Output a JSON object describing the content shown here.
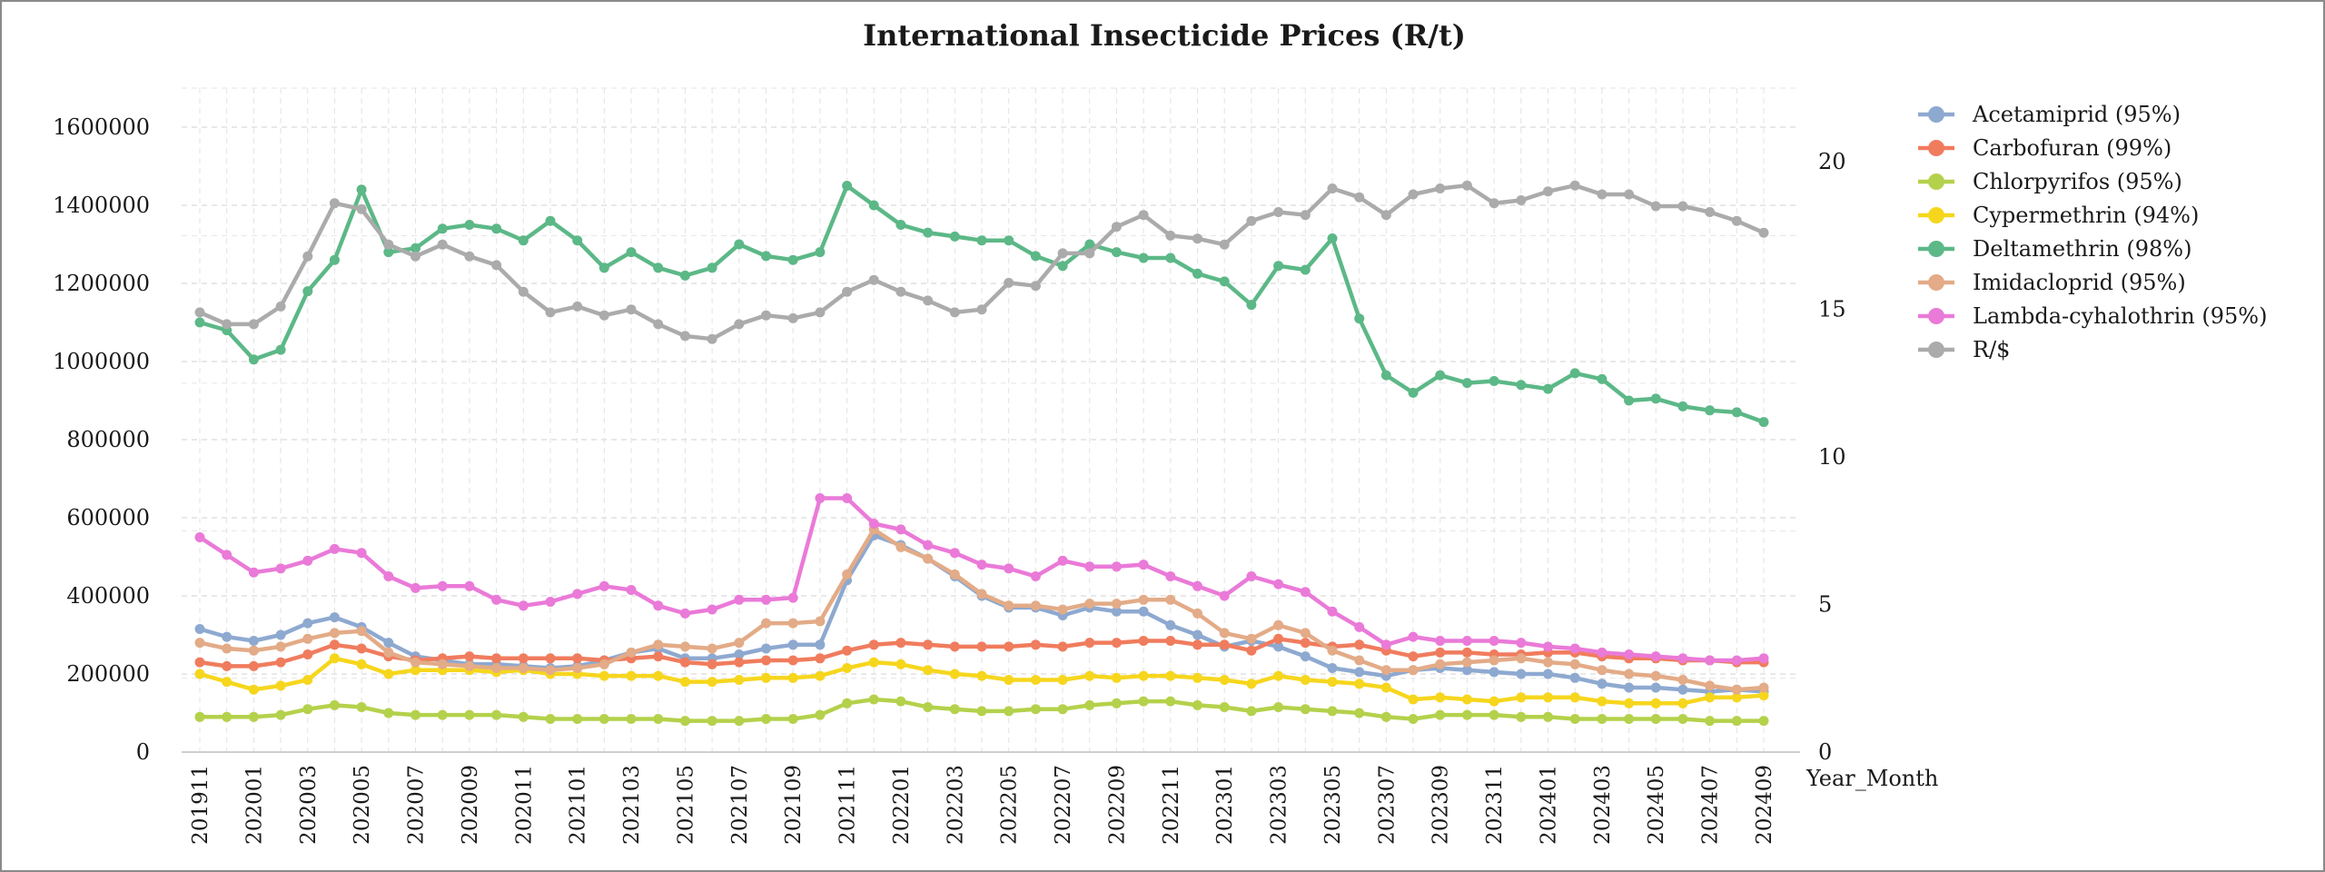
{
  "chart_data": {
    "type": "line",
    "title": "International Insecticide Prices (R/t)",
    "xlabel": "Year_Month",
    "ylabel": "",
    "ylim": [
      0,
      1700000
    ],
    "y2lim": [
      0,
      22.5
    ],
    "yticks": [
      "0",
      "200000",
      "400000",
      "600000",
      "800000",
      "1000000",
      "1200000",
      "1400000",
      "1600000"
    ],
    "y2ticks": [
      "0",
      "5",
      "10",
      "15",
      "20"
    ],
    "legend_position": "right",
    "grid": true,
    "x": [
      "201911",
      "201912",
      "202001",
      "202002",
      "202003",
      "202004",
      "202005",
      "202006",
      "202007",
      "202008",
      "202009",
      "202010",
      "202011",
      "202012",
      "202101",
      "202102",
      "202103",
      "202104",
      "202105",
      "202106",
      "202107",
      "202108",
      "202109",
      "202110",
      "202111",
      "202112",
      "202201",
      "202202",
      "202203",
      "202204",
      "202205",
      "202206",
      "202207",
      "202208",
      "202209",
      "202210",
      "202211",
      "202212",
      "202301",
      "202302",
      "202303",
      "202304",
      "202305",
      "202306",
      "202307",
      "202308",
      "202309",
      "202310",
      "202311",
      "202312",
      "202401",
      "202402",
      "202403",
      "202404",
      "202405",
      "202406",
      "202407",
      "202408",
      "202409"
    ],
    "series": [
      {
        "name": "Acetamiprid (95%)",
        "color": "#8ea9d0",
        "axis": "left",
        "values": [
          315000,
          295000,
          285000,
          300000,
          330000,
          345000,
          320000,
          280000,
          245000,
          235000,
          225000,
          225000,
          220000,
          215000,
          220000,
          235000,
          255000,
          265000,
          240000,
          240000,
          250000,
          265000,
          275000,
          275000,
          440000,
          555000,
          530000,
          495000,
          450000,
          400000,
          370000,
          370000,
          350000,
          370000,
          360000,
          360000,
          325000,
          300000,
          270000,
          285000,
          270000,
          245000,
          215000,
          205000,
          195000,
          210000,
          215000,
          210000,
          205000,
          200000,
          200000,
          190000,
          175000,
          165000,
          165000,
          160000,
          155000,
          160000,
          155000
        ]
      },
      {
        "name": "Carbofuran (99%)",
        "color": "#f07c5e",
        "axis": "left",
        "values": [
          230000,
          220000,
          220000,
          230000,
          250000,
          275000,
          265000,
          245000,
          235000,
          240000,
          245000,
          240000,
          240000,
          240000,
          240000,
          235000,
          240000,
          245000,
          230000,
          225000,
          230000,
          235000,
          235000,
          240000,
          260000,
          275000,
          280000,
          275000,
          270000,
          270000,
          270000,
          275000,
          270000,
          280000,
          280000,
          285000,
          285000,
          275000,
          275000,
          260000,
          290000,
          280000,
          270000,
          275000,
          260000,
          245000,
          255000,
          255000,
          250000,
          250000,
          255000,
          255000,
          245000,
          240000,
          240000,
          235000,
          235000,
          230000,
          230000
        ]
      },
      {
        "name": "Chlorpyrifos (95%)",
        "color": "#b4d14b",
        "axis": "left",
        "values": [
          90000,
          90000,
          90000,
          95000,
          110000,
          120000,
          115000,
          100000,
          95000,
          95000,
          95000,
          95000,
          90000,
          85000,
          85000,
          85000,
          85000,
          85000,
          80000,
          80000,
          80000,
          85000,
          85000,
          95000,
          125000,
          135000,
          130000,
          115000,
          110000,
          105000,
          105000,
          110000,
          110000,
          120000,
          125000,
          130000,
          130000,
          120000,
          115000,
          105000,
          115000,
          110000,
          105000,
          100000,
          90000,
          85000,
          95000,
          95000,
          95000,
          90000,
          90000,
          85000,
          85000,
          85000,
          85000,
          85000,
          80000,
          80000,
          80000
        ]
      },
      {
        "name": "Cypermethrin (94%)",
        "color": "#f6d61d",
        "axis": "left",
        "values": [
          200000,
          180000,
          160000,
          170000,
          185000,
          240000,
          225000,
          200000,
          210000,
          210000,
          210000,
          205000,
          210000,
          200000,
          200000,
          195000,
          195000,
          195000,
          180000,
          180000,
          185000,
          190000,
          190000,
          195000,
          215000,
          230000,
          225000,
          210000,
          200000,
          195000,
          185000,
          185000,
          185000,
          195000,
          190000,
          195000,
          195000,
          190000,
          185000,
          175000,
          195000,
          185000,
          180000,
          175000,
          165000,
          135000,
          140000,
          135000,
          130000,
          140000,
          140000,
          140000,
          130000,
          125000,
          125000,
          125000,
          140000,
          140000,
          145000
        ]
      },
      {
        "name": "Deltamethrin (98%)",
        "color": "#5cb887",
        "axis": "left",
        "values": [
          1100000,
          1080000,
          1005000,
          1030000,
          1180000,
          1260000,
          1440000,
          1280000,
          1290000,
          1340000,
          1350000,
          1340000,
          1310000,
          1360000,
          1310000,
          1240000,
          1280000,
          1240000,
          1220000,
          1240000,
          1300000,
          1270000,
          1260000,
          1280000,
          1450000,
          1400000,
          1350000,
          1330000,
          1320000,
          1310000,
          1310000,
          1270000,
          1245000,
          1300000,
          1280000,
          1265000,
          1265000,
          1225000,
          1205000,
          1145000,
          1245000,
          1235000,
          1315000,
          1110000,
          965000,
          920000,
          965000,
          945000,
          950000,
          940000,
          930000,
          970000,
          955000,
          900000,
          905000,
          885000,
          875000,
          870000,
          845000
        ]
      },
      {
        "name": "Imidacloprid (95%)",
        "color": "#e3ab87",
        "axis": "left",
        "values": [
          280000,
          265000,
          260000,
          270000,
          290000,
          305000,
          310000,
          255000,
          230000,
          225000,
          220000,
          215000,
          215000,
          210000,
          215000,
          225000,
          255000,
          275000,
          270000,
          265000,
          280000,
          330000,
          330000,
          335000,
          455000,
          570000,
          525000,
          495000,
          455000,
          405000,
          375000,
          375000,
          365000,
          380000,
          380000,
          390000,
          390000,
          355000,
          305000,
          290000,
          325000,
          305000,
          260000,
          235000,
          210000,
          210000,
          225000,
          230000,
          235000,
          240000,
          230000,
          225000,
          210000,
          200000,
          195000,
          185000,
          170000,
          160000,
          165000
        ]
      },
      {
        "name": "Lambda-cyhalothrin (95%)",
        "color": "#ea7ad8",
        "axis": "left",
        "values": [
          550000,
          505000,
          460000,
          470000,
          490000,
          520000,
          510000,
          450000,
          420000,
          425000,
          425000,
          390000,
          375000,
          385000,
          405000,
          425000,
          415000,
          375000,
          355000,
          365000,
          390000,
          390000,
          395000,
          650000,
          650000,
          585000,
          570000,
          530000,
          510000,
          480000,
          470000,
          450000,
          490000,
          475000,
          475000,
          480000,
          450000,
          425000,
          400000,
          450000,
          430000,
          410000,
          360000,
          320000,
          275000,
          295000,
          285000,
          285000,
          285000,
          280000,
          270000,
          265000,
          255000,
          250000,
          245000,
          240000,
          235000,
          235000,
          240000
        ]
      },
      {
        "name": "R/$",
        "color": "#ababab",
        "axis": "right",
        "values": [
          14.9,
          14.5,
          14.5,
          15.1,
          16.8,
          18.6,
          18.4,
          17.2,
          16.8,
          17.2,
          16.8,
          16.5,
          15.6,
          14.9,
          15.1,
          14.8,
          15.0,
          14.5,
          14.1,
          14.0,
          14.5,
          14.8,
          14.7,
          14.9,
          15.6,
          16.0,
          15.6,
          15.3,
          14.9,
          15.0,
          15.9,
          15.8,
          16.9,
          16.9,
          17.8,
          18.2,
          17.5,
          17.4,
          17.2,
          18.0,
          18.3,
          18.2,
          19.1,
          18.8,
          18.2,
          18.9,
          19.1,
          19.2,
          18.6,
          18.7,
          19.0,
          19.2,
          18.9,
          18.9,
          18.5,
          18.5,
          18.3,
          18.0,
          17.6
        ]
      }
    ]
  }
}
